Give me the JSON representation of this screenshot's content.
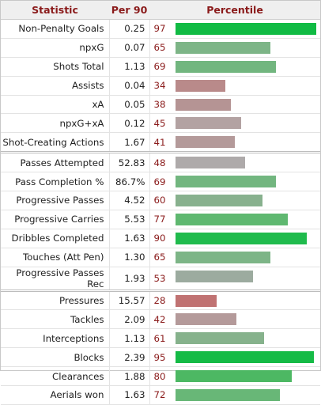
{
  "headers": {
    "statistic": "Statistic",
    "per90": "Per 90",
    "percentile": "Percentile"
  },
  "max_bar_width": 184,
  "groups": [
    {
      "rows": [
        {
          "label": "Non-Penalty Goals",
          "per90": "0.25",
          "percentile": 97,
          "color": "#11bb44"
        },
        {
          "label": "npxG",
          "per90": "0.07",
          "percentile": 65,
          "color": "#7db587"
        },
        {
          "label": "Shots Total",
          "per90": "1.13",
          "percentile": 69,
          "color": "#72b67f"
        },
        {
          "label": "Assists",
          "per90": "0.04",
          "percentile": 34,
          "color": "#b98a8a"
        },
        {
          "label": "xA",
          "per90": "0.05",
          "percentile": 38,
          "color": "#b59494"
        },
        {
          "label": "npxG+xA",
          "per90": "0.12",
          "percentile": 45,
          "color": "#b3a2a2"
        },
        {
          "label": "Shot-Creating Actions",
          "per90": "1.67",
          "percentile": 41,
          "color": "#b49a9a"
        }
      ]
    },
    {
      "rows": [
        {
          "label": "Passes Attempted",
          "per90": "52.83",
          "percentile": 48,
          "color": "#aeaaaa"
        },
        {
          "label": "Pass Completion %",
          "per90": "86.7%",
          "percentile": 69,
          "color": "#72b67f"
        },
        {
          "label": "Progressive Passes",
          "per90": "4.52",
          "percentile": 60,
          "color": "#88b18e"
        },
        {
          "label": "Progressive Carries",
          "per90": "5.53",
          "percentile": 77,
          "color": "#5fb870"
        },
        {
          "label": "Dribbles Completed",
          "per90": "1.63",
          "percentile": 90,
          "color": "#20bb4d"
        },
        {
          "label": "Touches (Att Pen)",
          "per90": "1.30",
          "percentile": 65,
          "color": "#7db587"
        },
        {
          "label": "Progressive Passes Rec",
          "per90": "1.93",
          "percentile": 53,
          "color": "#9cab9f"
        }
      ]
    },
    {
      "rows": [
        {
          "label": "Pressures",
          "per90": "15.57",
          "percentile": 28,
          "color": "#c07272"
        },
        {
          "label": "Tackles",
          "per90": "2.09",
          "percentile": 42,
          "color": "#b49a9a"
        },
        {
          "label": "Interceptions",
          "per90": "1.13",
          "percentile": 61,
          "color": "#86b28c"
        },
        {
          "label": "Blocks",
          "per90": "2.39",
          "percentile": 95,
          "color": "#15bb46"
        },
        {
          "label": "Clearances",
          "per90": "1.88",
          "percentile": 80,
          "color": "#4db863"
        },
        {
          "label": "Aerials won",
          "per90": "1.63",
          "percentile": 72,
          "color": "#68b777"
        }
      ]
    }
  ]
}
